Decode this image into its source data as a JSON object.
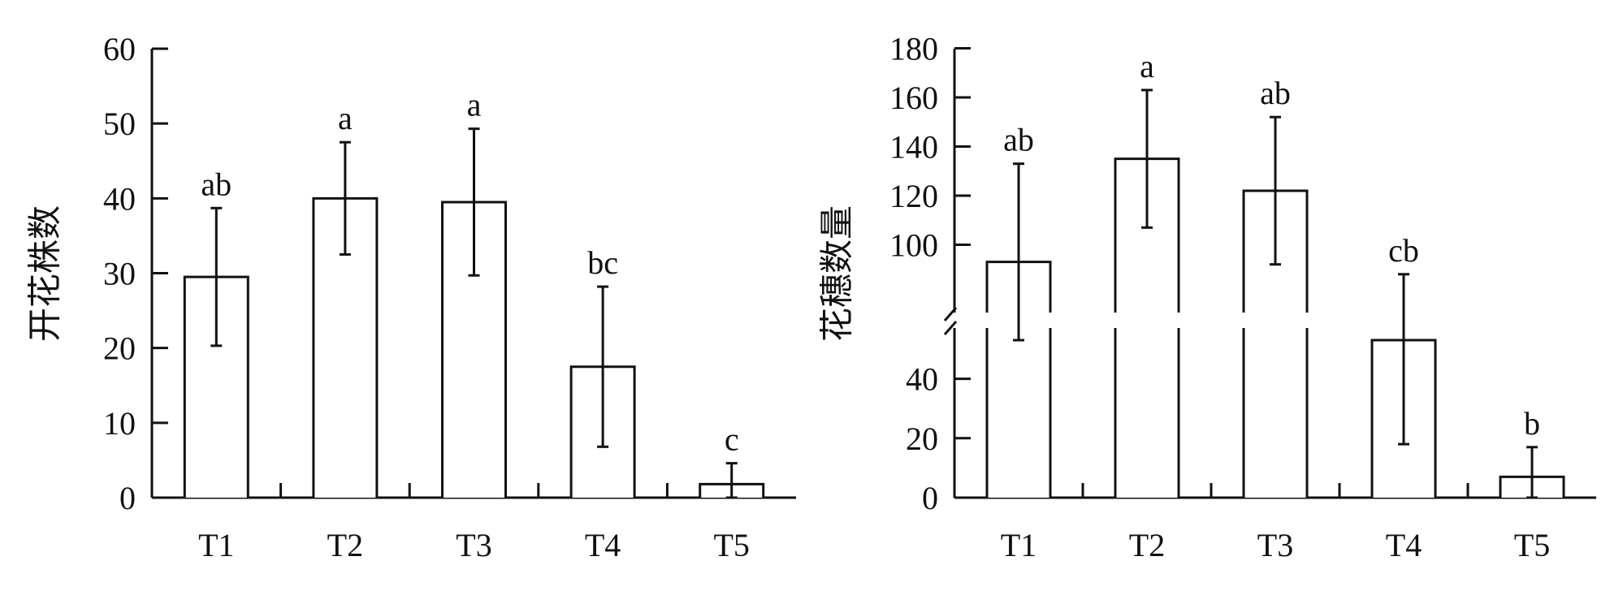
{
  "chart_data": [
    {
      "type": "bar",
      "categories": [
        "T1",
        "T2",
        "T3",
        "T4",
        "T5"
      ],
      "values": [
        29.5,
        40,
        39.5,
        17.5,
        1.8
      ],
      "error": [
        9.2,
        7.5,
        9.8,
        10.7,
        2.8
      ],
      "significance": [
        "ab",
        "a",
        "a",
        "bc",
        "c"
      ],
      "ylabel": "开花株数",
      "ylim": [
        0,
        60
      ],
      "yticks": [
        "0",
        "10",
        "20",
        "30",
        "40",
        "50",
        "60"
      ],
      "grid": false
    },
    {
      "type": "bar",
      "categories": [
        "T1",
        "T2",
        "T3",
        "T4",
        "T5"
      ],
      "values": [
        93,
        135,
        122,
        53,
        7
      ],
      "error": [
        40,
        28,
        30,
        35,
        10
      ],
      "significance": [
        "ab",
        "a",
        "ab",
        "cb",
        "b"
      ],
      "ylabel": "花穗数量",
      "ylim": [
        0,
        180
      ],
      "axis_break": [
        60,
        90
      ],
      "yticks": [
        "0",
        "20",
        "40",
        "100",
        "120",
        "140",
        "160",
        "180"
      ],
      "grid": false
    }
  ]
}
